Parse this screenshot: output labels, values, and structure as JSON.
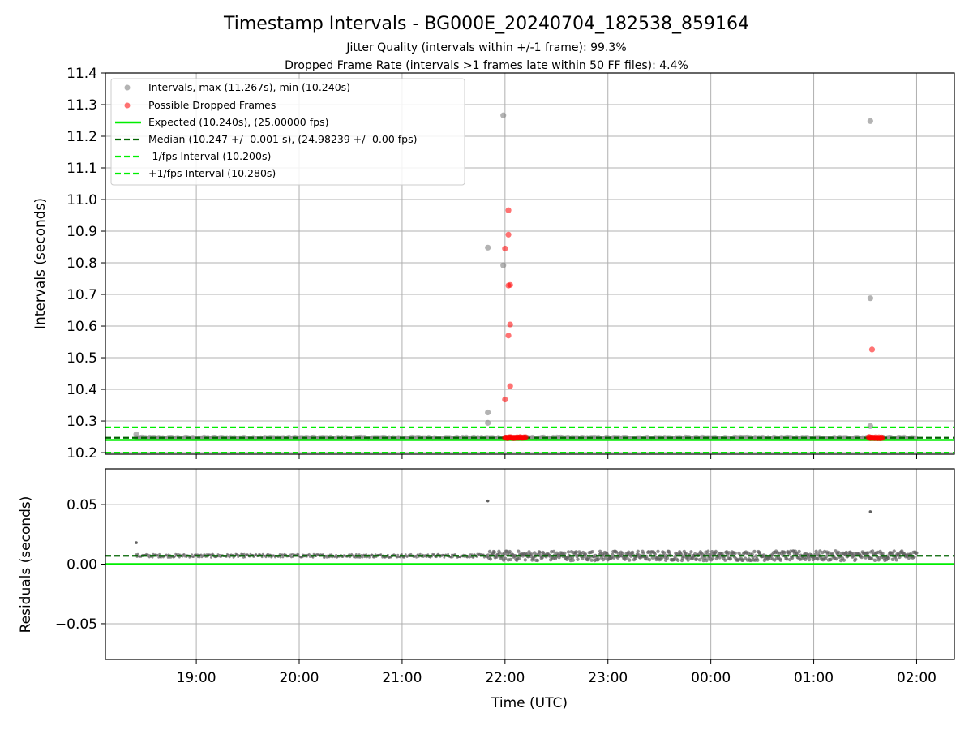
{
  "chart_data": [
    {
      "type": "scatter",
      "panel": "intervals",
      "title": "Timestamp Intervals - BG000E_20240704_182538_859164",
      "subtitle_lines": [
        "Jitter Quality (intervals within +/-1 frame): 99.3%",
        "Dropped Frame Rate (intervals >1 frames late within 50 FF files): 4.4%"
      ],
      "ylabel": "Intervals (seconds)",
      "xlim": [
        "18:07",
        "02:22"
      ],
      "ylim": [
        10.195,
        11.4
      ],
      "yticks": [
        "10.2",
        "10.3",
        "10.4",
        "10.5",
        "10.6",
        "10.7",
        "10.8",
        "10.9",
        "11.0",
        "11.1",
        "11.2",
        "11.3",
        "11.4"
      ],
      "grid": true,
      "legend_position": "upper-left",
      "legend": [
        "Intervals, max (11.267s), min (10.240s)",
        "Possible Dropped Frames",
        "Expected (10.240s), (25.00000 fps)",
        "Median (10.247 +/- 0.001 s), (24.98239 +/- 0.00 fps)",
        "-1/fps Interval (10.200s)",
        "+1/fps Interval (10.280s)"
      ],
      "colors": {
        "intervals": "#808080",
        "dropped": "#ff0000",
        "expected": "#00ee00",
        "median": "#006400",
        "fps_band": "#00ee00"
      },
      "reference_lines": {
        "expected": 10.24,
        "median": 10.247,
        "minus_fps": 10.2,
        "plus_fps": 10.28
      },
      "baseline_value": 10.247,
      "baseline_start": "18:25",
      "baseline_end": "02:00",
      "intervals_points": [
        {
          "t": "18:25",
          "v": 10.258
        },
        {
          "t": "21:50",
          "v": 10.848
        },
        {
          "t": "21:50",
          "v": 10.327
        },
        {
          "t": "21:50",
          "v": 10.294
        },
        {
          "t": "21:59",
          "v": 11.266
        },
        {
          "t": "21:59",
          "v": 10.792
        },
        {
          "t": "01:33",
          "v": 11.248
        },
        {
          "t": "01:33",
          "v": 10.688
        },
        {
          "t": "01:33",
          "v": 10.284
        }
      ],
      "dropped_points": [
        {
          "t": "22:02",
          "v": 10.966
        },
        {
          "t": "22:02",
          "v": 10.889
        },
        {
          "t": "22:00",
          "v": 10.845
        },
        {
          "t": "22:03",
          "v": 10.73
        },
        {
          "t": "22:02",
          "v": 10.728
        },
        {
          "t": "22:03",
          "v": 10.605
        },
        {
          "t": "22:02",
          "v": 10.57
        },
        {
          "t": "22:03",
          "v": 10.41
        },
        {
          "t": "22:00",
          "v": 10.368
        },
        {
          "t": "01:34",
          "v": 10.526
        }
      ],
      "dropped_clusters": [
        {
          "start": "22:00",
          "end": "22:12",
          "v": 10.247
        },
        {
          "start": "01:32",
          "end": "01:40",
          "v": 10.247
        }
      ]
    },
    {
      "type": "scatter",
      "panel": "residuals",
      "xlabel": "Time (UTC)",
      "ylabel": "Residuals (seconds)",
      "xlim": [
        "18:07",
        "02:22"
      ],
      "ylim": [
        -0.08,
        0.08
      ],
      "yticks": [
        "−0.05",
        "0.00",
        "0.05"
      ],
      "ytick_values": [
        -0.05,
        0.0,
        0.05
      ],
      "xticks": [
        "19:00",
        "20:00",
        "21:00",
        "22:00",
        "23:00",
        "00:00",
        "01:00",
        "02:00"
      ],
      "grid": true,
      "reference_lines": {
        "zero": 0.0,
        "median_offset": 0.007
      },
      "outliers": [
        {
          "t": "18:25",
          "v": 0.018
        },
        {
          "t": "21:50",
          "v": 0.053
        },
        {
          "t": "01:33",
          "v": 0.044
        }
      ],
      "dense_band": {
        "start": "18:25",
        "end": "02:00",
        "center": 0.007,
        "spread_early": 0.0015,
        "spread_late": 0.004,
        "spread_change": "21:50"
      }
    }
  ]
}
